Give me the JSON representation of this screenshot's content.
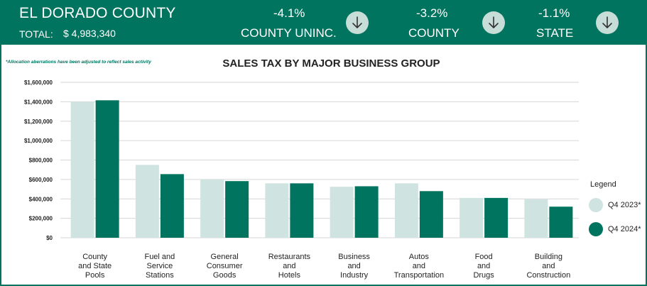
{
  "header": {
    "title": "EL DORADO COUNTY",
    "total_label": "TOTAL:",
    "total_value": "$ 4,983,340",
    "metrics": [
      {
        "pct": "-4.1%",
        "label": "COUNTY UNINC.",
        "icon": "arrow-down-icon"
      },
      {
        "pct": "-3.2%",
        "label": "COUNTY",
        "icon": "arrow-down-icon"
      },
      {
        "pct": "-1.1%",
        "label": "STATE",
        "icon": "arrow-down-icon"
      }
    ]
  },
  "note": "*Allocation aberrations have been adjusted to reflect sales activity",
  "colors": {
    "brand": "#00745f",
    "light": "#cfe3e0",
    "dark": "#00745f",
    "arrow_bg": "#c6ddd8"
  },
  "legend": {
    "title": "Legend",
    "items": [
      "Q4 2023*",
      "Q4 2024*"
    ]
  },
  "chart_data": {
    "type": "bar",
    "title": "SALES TAX BY MAJOR BUSINESS GROUP",
    "categories": [
      [
        "County",
        "and State",
        "Pools"
      ],
      [
        "Fuel and",
        "Service",
        "Stations"
      ],
      [
        "General",
        "Consumer",
        "Goods"
      ],
      [
        "Restaurants",
        "and",
        "Hotels"
      ],
      [
        "Business",
        "and",
        "Industry"
      ],
      [
        "Autos",
        "and",
        "Transportation"
      ],
      [
        "Food",
        "and",
        "Drugs"
      ],
      [
        "Building",
        "and",
        "Construction"
      ]
    ],
    "series": [
      {
        "name": "Q4 2023*",
        "color": "#cfe3e0",
        "values": [
          1400000,
          750000,
          600000,
          560000,
          525000,
          560000,
          410000,
          395000
        ]
      },
      {
        "name": "Q4 2024*",
        "color": "#00745f",
        "values": [
          1415000,
          655000,
          583000,
          560000,
          530000,
          480000,
          410000,
          320000
        ]
      }
    ],
    "ylim": [
      0,
      1600000
    ],
    "yticks": [
      0,
      200000,
      400000,
      600000,
      800000,
      1000000,
      1200000,
      1400000,
      1600000
    ],
    "ytick_labels": [
      "$0",
      "$200,000",
      "$400,000",
      "$600,000",
      "$800,000",
      "$1,000,000",
      "$1,200,000",
      "$1,400,000",
      "$1,600,000"
    ],
    "grid": true,
    "legend_position": "right"
  }
}
